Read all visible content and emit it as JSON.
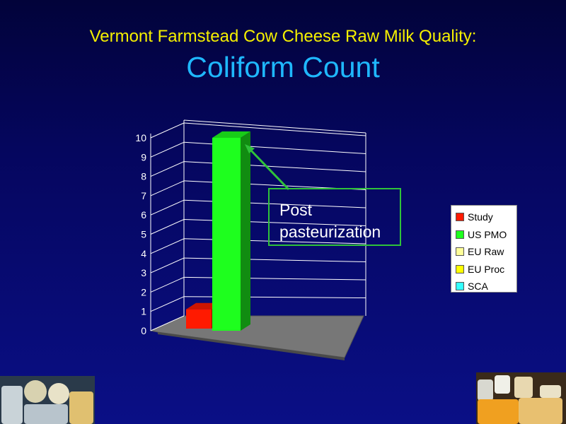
{
  "title": {
    "line1": "Vermont Farmstead Cow Cheese Raw Milk Quality:",
    "line2": "Coliform Count"
  },
  "callout": {
    "line1": "Post",
    "line2": "pasteurization",
    "color": "#2fc23a"
  },
  "chart_data": {
    "type": "bar",
    "chart_style": "3d-column",
    "categories": [
      "Study",
      "US PMO",
      "EU Raw",
      "EU Proc",
      "SCA"
    ],
    "values": [
      1,
      10,
      0,
      0,
      0
    ],
    "colors": [
      "#ff1a00",
      "#1eff1e",
      "#ffff99",
      "#ffff00",
      "#33ffff"
    ],
    "yticks": [
      "0",
      "1",
      "2",
      "3",
      "4",
      "5",
      "6",
      "7",
      "8",
      "9",
      "10"
    ],
    "ylim": [
      0,
      10
    ],
    "title": "",
    "xlabel": "",
    "ylabel": "",
    "grid": true,
    "legend_position": "right"
  },
  "legend": {
    "items": [
      {
        "label": "Study",
        "color": "#ff1a00"
      },
      {
        "label": "US PMO",
        "color": "#1eff1e"
      },
      {
        "label": "EU Raw",
        "color": "#ffff99"
      },
      {
        "label": "EU Proc",
        "color": "#ffff00"
      },
      {
        "label": "SCA",
        "color": "#33ffff"
      }
    ]
  }
}
